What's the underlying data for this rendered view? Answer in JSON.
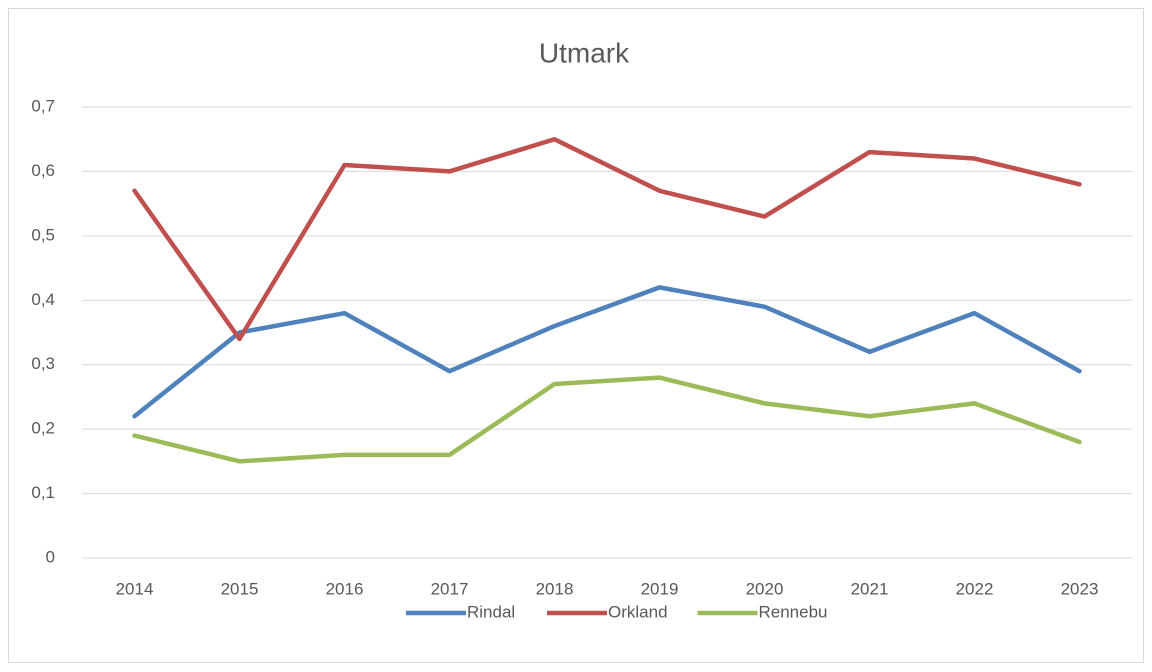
{
  "chart_data": {
    "type": "line",
    "title": "Utmark",
    "categories": [
      "2014",
      "2015",
      "2016",
      "2017",
      "2018",
      "2019",
      "2020",
      "2021",
      "2022",
      "2023"
    ],
    "series": [
      {
        "name": "Rindal",
        "color": "#4f81bd",
        "values": [
          0.22,
          0.35,
          0.38,
          0.29,
          0.36,
          0.42,
          0.39,
          0.32,
          0.38,
          0.29
        ]
      },
      {
        "name": "Orkland",
        "color": "#c0504d",
        "values": [
          0.57,
          0.34,
          0.61,
          0.6,
          0.65,
          0.57,
          0.53,
          0.63,
          0.62,
          0.58
        ]
      },
      {
        "name": "Rennebu",
        "color": "#9bbb59",
        "values": [
          0.19,
          0.15,
          0.16,
          0.16,
          0.27,
          0.28,
          0.24,
          0.22,
          0.24,
          0.18
        ]
      }
    ],
    "ylim": [
      0,
      0.7
    ],
    "yticks": [
      0,
      {
        "value": 0.1,
        "label": "0,1"
      },
      {
        "value": 0.2,
        "label": "0,2"
      },
      {
        "value": 0.3,
        "label": "0,3"
      },
      {
        "value": 0.4,
        "label": "0,4"
      },
      {
        "value": 0.5,
        "label": "0,5"
      },
      {
        "value": 0.6,
        "label": "0,6"
      },
      {
        "value": 0.7,
        "label": "0,7"
      }
    ],
    "grid": true,
    "legend": "bottom"
  }
}
